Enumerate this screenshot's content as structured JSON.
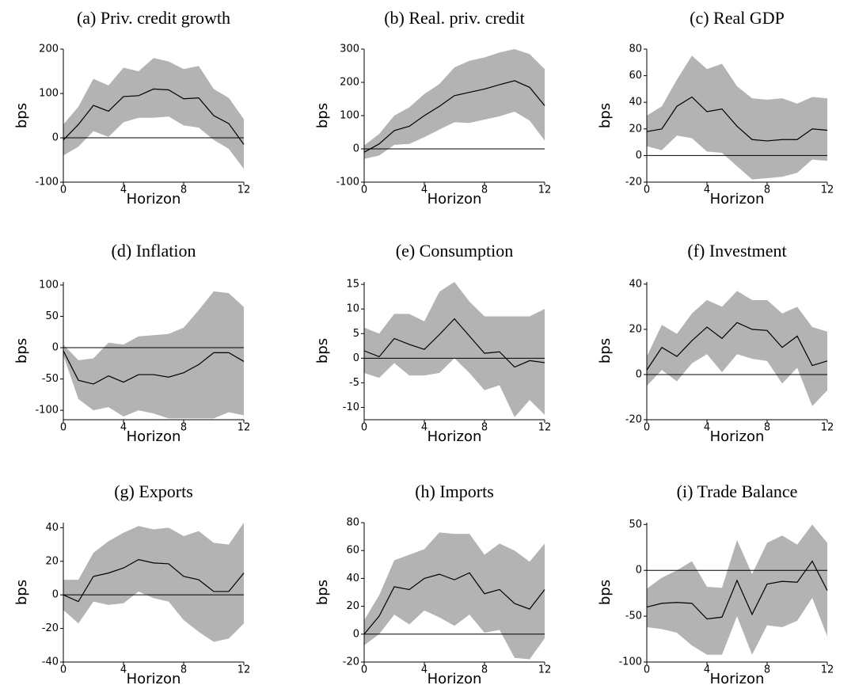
{
  "chart_data": [
    {
      "type": "line",
      "title": "(a) Priv. credit growth",
      "ylabel": "bps",
      "xlabel": "Horizon",
      "x": [
        0,
        1,
        2,
        3,
        4,
        5,
        6,
        7,
        8,
        9,
        10,
        11,
        12
      ],
      "values": [
        -5,
        30,
        73,
        60,
        93,
        95,
        110,
        108,
        88,
        90,
        50,
        32,
        -15
      ],
      "band_upper": [
        30,
        70,
        133,
        118,
        158,
        150,
        180,
        172,
        155,
        162,
        110,
        90,
        42
      ],
      "band_lower": [
        -40,
        -20,
        15,
        2,
        35,
        45,
        45,
        48,
        28,
        23,
        -5,
        -25,
        -70
      ],
      "color": "#000000",
      "band_color": "#b3b3b3",
      "hline": 0,
      "xlim": [
        0,
        12
      ],
      "xticks": [
        0,
        4,
        8,
        12
      ],
      "ylim": [
        -100,
        200
      ],
      "yticks": [
        -100,
        0,
        100,
        200
      ]
    },
    {
      "type": "line",
      "title": "(b) Real. priv. credit",
      "ylabel": "bps",
      "xlabel": "Horizon",
      "x": [
        0,
        1,
        2,
        3,
        4,
        5,
        6,
        7,
        8,
        9,
        10,
        11,
        12
      ],
      "values": [
        -10,
        15,
        55,
        68,
        100,
        128,
        160,
        170,
        180,
        193,
        205,
        185,
        130
      ],
      "band_upper": [
        10,
        45,
        100,
        125,
        165,
        195,
        245,
        265,
        275,
        290,
        300,
        285,
        240
      ],
      "band_lower": [
        -30,
        -20,
        12,
        15,
        35,
        58,
        80,
        78,
        88,
        98,
        112,
        85,
        25
      ],
      "color": "#000000",
      "band_color": "#b3b3b3",
      "hline": 0,
      "xlim": [
        0,
        12
      ],
      "xticks": [
        0,
        4,
        8,
        12
      ],
      "ylim": [
        -100,
        300
      ],
      "yticks": [
        -100,
        0,
        100,
        200,
        300
      ]
    },
    {
      "type": "line",
      "title": "(c) Real GDP",
      "ylabel": "bps",
      "xlabel": "Horizon",
      "x": [
        0,
        1,
        2,
        3,
        4,
        5,
        6,
        7,
        8,
        9,
        10,
        11,
        12
      ],
      "values": [
        18,
        20,
        37,
        44,
        33,
        35,
        22,
        12,
        11,
        12,
        12,
        20,
        19
      ],
      "band_upper": [
        30,
        37,
        57,
        75,
        65,
        69,
        52,
        43,
        42,
        43,
        39,
        44,
        43
      ],
      "band_lower": [
        7,
        4,
        15,
        13,
        3,
        2,
        -8,
        -18,
        -17,
        -16,
        -13,
        -3,
        -4
      ],
      "color": "#000000",
      "band_color": "#b3b3b3",
      "hline": 0,
      "xlim": [
        0,
        12
      ],
      "xticks": [
        0,
        4,
        8,
        12
      ],
      "ylim": [
        -20,
        80
      ],
      "yticks": [
        -20,
        0,
        20,
        40,
        60,
        80
      ]
    },
    {
      "type": "line",
      "title": "(d) Inflation",
      "ylabel": "bps",
      "xlabel": "Horizon",
      "x": [
        0,
        1,
        2,
        3,
        4,
        5,
        6,
        7,
        8,
        9,
        10,
        11,
        12
      ],
      "values": [
        -5,
        -52,
        -58,
        -45,
        -55,
        -43,
        -43,
        -47,
        -40,
        -27,
        -8,
        -8,
        -22
      ],
      "band_upper": [
        5,
        -20,
        -17,
        8,
        5,
        18,
        20,
        22,
        32,
        60,
        90,
        87,
        65
      ],
      "band_lower": [
        -12,
        -82,
        -100,
        -95,
        -110,
        -100,
        -105,
        -113,
        -113,
        -113,
        -113,
        -103,
        -108
      ],
      "color": "#000000",
      "band_color": "#b3b3b3",
      "hline": 0,
      "xlim": [
        0,
        12
      ],
      "xticks": [
        0,
        4,
        8,
        12
      ],
      "ylim": [
        -115,
        105
      ],
      "yticks": [
        -100,
        -50,
        0,
        50,
        100
      ]
    },
    {
      "type": "line",
      "title": "(e) Consumption",
      "ylabel": "bps",
      "xlabel": "Horizon",
      "x": [
        0,
        1,
        2,
        3,
        4,
        5,
        6,
        7,
        8,
        9,
        10,
        11,
        12
      ],
      "values": [
        1.5,
        0.3,
        4,
        2.8,
        1.8,
        4.8,
        8,
        4.5,
        1,
        1.3,
        -1.8,
        -0.5,
        -0.9
      ],
      "band_upper": [
        6.2,
        5,
        9,
        9,
        7.5,
        13.5,
        15.5,
        11.5,
        8.5,
        8.5,
        8.5,
        8.5,
        10
      ],
      "band_lower": [
        -3,
        -4,
        -1,
        -3.5,
        -3.5,
        -3,
        0,
        -3,
        -6.5,
        -5.5,
        -12,
        -8.5,
        -11.5
      ],
      "color": "#000000",
      "band_color": "#b3b3b3",
      "hline": 0,
      "xlim": [
        0,
        12
      ],
      "xticks": [
        0,
        4,
        8,
        12
      ],
      "ylim": [
        -12.5,
        15.5
      ],
      "yticks": [
        -10,
        -5,
        0,
        5,
        10,
        15
      ]
    },
    {
      "type": "line",
      "title": "(f) Investment",
      "ylabel": "bps",
      "xlabel": "Horizon",
      "x": [
        0,
        1,
        2,
        3,
        4,
        5,
        6,
        7,
        8,
        9,
        10,
        11,
        12
      ],
      "values": [
        2,
        12,
        8,
        15,
        21,
        16,
        23,
        20,
        19.5,
        12,
        17,
        4,
        6
      ],
      "band_upper": [
        8,
        22,
        18,
        27,
        33,
        30,
        37,
        33,
        33,
        27,
        30,
        21,
        19
      ],
      "band_lower": [
        -5,
        2,
        -3,
        5,
        9,
        1,
        9,
        7,
        6,
        -4,
        3,
        -14,
        -7
      ],
      "color": "#000000",
      "band_color": "#b3b3b3",
      "hline": 0,
      "xlim": [
        0,
        12
      ],
      "xticks": [
        0,
        4,
        8,
        12
      ],
      "ylim": [
        -20,
        41
      ],
      "yticks": [
        -20,
        0,
        20,
        40
      ]
    },
    {
      "type": "line",
      "title": "(g) Exports",
      "ylabel": "bps",
      "xlabel": "Horizon",
      "x": [
        0,
        1,
        2,
        3,
        4,
        5,
        6,
        7,
        8,
        9,
        10,
        11,
        12
      ],
      "values": [
        0,
        -4,
        11,
        13,
        16,
        21,
        19,
        18.5,
        11,
        9,
        2,
        2,
        13
      ],
      "band_upper": [
        9,
        9,
        25,
        32,
        37,
        41,
        39,
        40,
        35,
        38,
        31,
        30,
        43
      ],
      "band_lower": [
        -9,
        -17,
        -4,
        -6,
        -5,
        2,
        -2,
        -4,
        -15,
        -22,
        -28,
        -26,
        -17
      ],
      "color": "#000000",
      "band_color": "#b3b3b3",
      "hline": 0,
      "xlim": [
        0,
        12
      ],
      "xticks": [
        0,
        4,
        8,
        12
      ],
      "ylim": [
        -40,
        43
      ],
      "yticks": [
        -40,
        -20,
        0,
        20,
        40
      ]
    },
    {
      "type": "line",
      "title": "(h) Imports",
      "ylabel": "bps",
      "xlabel": "Horizon",
      "x": [
        0,
        1,
        2,
        3,
        4,
        5,
        6,
        7,
        8,
        9,
        10,
        11,
        12
      ],
      "values": [
        0,
        13,
        34,
        32,
        40,
        43,
        39,
        44,
        29,
        32,
        22,
        18,
        32
      ],
      "band_upper": [
        10,
        28,
        53,
        57,
        61,
        73,
        72,
        72,
        57,
        65,
        60,
        52,
        65
      ],
      "band_lower": [
        -8,
        0,
        14,
        7,
        17,
        12,
        6,
        14,
        1,
        3,
        -17,
        -18,
        -3
      ],
      "color": "#000000",
      "band_color": "#b3b3b3",
      "hline": 0,
      "xlim": [
        0,
        12
      ],
      "xticks": [
        0,
        4,
        8,
        12
      ],
      "ylim": [
        -20,
        80
      ],
      "yticks": [
        -20,
        0,
        20,
        40,
        60,
        80
      ]
    },
    {
      "type": "line",
      "title": "(i) Trade Balance",
      "ylabel": "bps",
      "xlabel": "Horizon",
      "x": [
        0,
        1,
        2,
        3,
        4,
        5,
        6,
        7,
        8,
        9,
        10,
        11,
        12
      ],
      "values": [
        -40,
        -36,
        -35,
        -36,
        -53,
        -51,
        -11,
        -48,
        -15,
        -12,
        -13,
        10,
        -22
      ],
      "band_upper": [
        -20,
        -8,
        0,
        10,
        -18,
        -19,
        33,
        -4,
        30,
        38,
        28,
        50,
        30
      ],
      "band_lower": [
        -62,
        -64,
        -68,
        -82,
        -92,
        -92,
        -50,
        -92,
        -60,
        -62,
        -55,
        -30,
        -72
      ],
      "color": "#000000",
      "band_color": "#b3b3b3",
      "hline": 0,
      "xlim": [
        0,
        12
      ],
      "xticks": [
        0,
        4,
        8,
        12
      ],
      "ylim": [
        -100,
        52
      ],
      "yticks": [
        -100,
        -50,
        0,
        50
      ]
    }
  ]
}
